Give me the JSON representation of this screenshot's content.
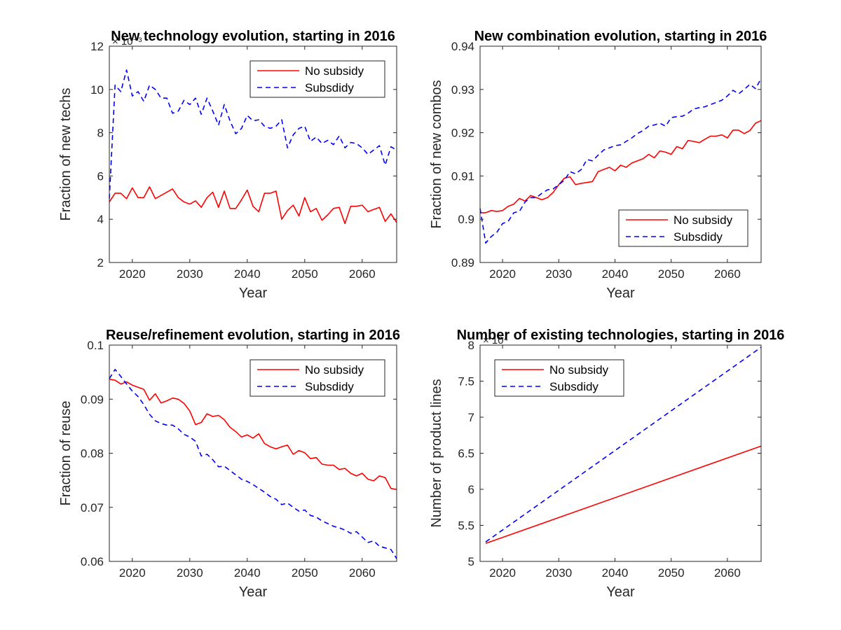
{
  "chart_data": [
    {
      "type": "line",
      "title": "New technology evolution, starting in 2016",
      "xlabel": "Year",
      "ylabel": "Fraction of new techs",
      "y_exponent": "× 10⁻³",
      "xlim": [
        2016,
        2066
      ],
      "ylim": [
        2,
        12
      ],
      "xticks": [
        2020,
        2030,
        2040,
        2050,
        2060
      ],
      "yticks": [
        2,
        4,
        6,
        8,
        10,
        12
      ],
      "legend_placement": "top-right",
      "x": [
        2016,
        2017,
        2018,
        2019,
        2020,
        2021,
        2022,
        2023,
        2024,
        2025,
        2026,
        2027,
        2028,
        2029,
        2030,
        2031,
        2032,
        2033,
        2034,
        2035,
        2036,
        2037,
        2038,
        2039,
        2040,
        2041,
        2042,
        2043,
        2044,
        2045,
        2046,
        2047,
        2048,
        2049,
        2050,
        2051,
        2052,
        2053,
        2054,
        2055,
        2056,
        2057,
        2058,
        2059,
        2060,
        2061,
        2062,
        2063,
        2064,
        2065,
        2066
      ],
      "series": [
        {
          "name": "No subsidy",
          "color": "#ff0000",
          "dash": "solid",
          "values": [
            4.8,
            5.2,
            5.2,
            4.95,
            5.45,
            5.0,
            5.0,
            5.5,
            4.95,
            5.1,
            5.25,
            5.4,
            5.0,
            4.8,
            4.7,
            4.85,
            4.55,
            5.0,
            5.25,
            4.55,
            5.3,
            4.5,
            4.5,
            4.9,
            5.35,
            4.6,
            4.35,
            5.2,
            5.2,
            5.3,
            4.0,
            4.4,
            4.65,
            4.15,
            5.0,
            4.35,
            4.5,
            3.95,
            4.2,
            4.5,
            4.55,
            3.8,
            4.6,
            4.6,
            4.65,
            4.35,
            4.45,
            4.55,
            3.9,
            4.25,
            3.85
          ]
        },
        {
          "name": "Subsdidy",
          "color": "#0000ff",
          "dash": "dashed",
          "values": [
            4.95,
            10.2,
            9.9,
            10.9,
            9.7,
            9.9,
            9.45,
            10.2,
            10.0,
            9.6,
            9.6,
            8.9,
            9.0,
            9.5,
            9.3,
            9.6,
            8.85,
            9.6,
            9.0,
            8.35,
            9.3,
            8.55,
            7.95,
            8.2,
            8.8,
            8.55,
            8.6,
            8.3,
            8.2,
            8.3,
            8.6,
            7.3,
            7.9,
            8.2,
            8.3,
            7.6,
            7.8,
            7.5,
            7.65,
            7.45,
            7.85,
            7.3,
            7.55,
            7.5,
            7.3,
            7.0,
            7.2,
            7.4,
            6.5,
            7.35,
            7.2
          ]
        }
      ]
    },
    {
      "type": "line",
      "title": "New combination evolution, starting in 2016",
      "xlabel": "Year",
      "ylabel": "Fraction of new combos",
      "xlim": [
        2016,
        2066
      ],
      "ylim": [
        0.89,
        0.94
      ],
      "xticks": [
        2020,
        2030,
        2040,
        2050,
        2060
      ],
      "yticks": [
        0.89,
        0.9,
        0.91,
        0.92,
        0.93,
        0.94
      ],
      "ytick_labels": [
        "0.89",
        "0.9",
        "0.91",
        "0.92",
        "0.93",
        "0.94"
      ],
      "legend_placement": "bottom-right",
      "x": [
        2016,
        2017,
        2018,
        2019,
        2020,
        2021,
        2022,
        2023,
        2024,
        2025,
        2026,
        2027,
        2028,
        2029,
        2030,
        2031,
        2032,
        2033,
        2034,
        2035,
        2036,
        2037,
        2038,
        2039,
        2040,
        2041,
        2042,
        2043,
        2044,
        2045,
        2046,
        2047,
        2048,
        2049,
        2050,
        2051,
        2052,
        2053,
        2054,
        2055,
        2056,
        2057,
        2058,
        2059,
        2060,
        2061,
        2062,
        2063,
        2064,
        2065,
        2066
      ],
      "series": [
        {
          "name": "No subsidy",
          "color": "#ff0000",
          "dash": "solid",
          "values": [
            0.9015,
            0.9015,
            0.902,
            0.9018,
            0.902,
            0.903,
            0.9035,
            0.9048,
            0.9042,
            0.9055,
            0.905,
            0.9045,
            0.905,
            0.9062,
            0.908,
            0.9095,
            0.9098,
            0.908,
            0.9083,
            0.9085,
            0.9087,
            0.911,
            0.9115,
            0.912,
            0.9112,
            0.9125,
            0.912,
            0.913,
            0.9135,
            0.914,
            0.915,
            0.9142,
            0.9158,
            0.9155,
            0.915,
            0.9168,
            0.9163,
            0.9182,
            0.918,
            0.9177,
            0.9185,
            0.9192,
            0.9192,
            0.9195,
            0.9188,
            0.9206,
            0.9206,
            0.9198,
            0.9205,
            0.9222,
            0.9228
          ]
        },
        {
          "name": "Subsdidy",
          "color": "#0000ff",
          "dash": "dashed",
          "values": [
            0.9025,
            0.8945,
            0.896,
            0.897,
            0.899,
            0.8995,
            0.9015,
            0.9018,
            0.904,
            0.905,
            0.905,
            0.906,
            0.9068,
            0.907,
            0.908,
            0.909,
            0.911,
            0.9105,
            0.9115,
            0.9138,
            0.9135,
            0.9148,
            0.916,
            0.9165,
            0.917,
            0.9172,
            0.918,
            0.9188,
            0.9198,
            0.9205,
            0.9215,
            0.9218,
            0.9222,
            0.9215,
            0.9235,
            0.9237,
            0.9238,
            0.9245,
            0.9255,
            0.9258,
            0.926,
            0.9265,
            0.927,
            0.9275,
            0.9285,
            0.9298,
            0.929,
            0.93,
            0.9312,
            0.9302,
            0.9325
          ]
        }
      ]
    },
    {
      "type": "line",
      "title": "Reuse/refinement evolution, starting in 2016",
      "xlabel": "Year",
      "ylabel": "Fraction of reuse",
      "xlim": [
        2016,
        2066
      ],
      "ylim": [
        0.06,
        0.1
      ],
      "xticks": [
        2020,
        2030,
        2040,
        2050,
        2060
      ],
      "yticks": [
        0.06,
        0.07,
        0.08,
        0.09,
        0.1
      ],
      "ytick_labels": [
        "0.06",
        "0.07",
        "0.08",
        "0.09",
        "0.1"
      ],
      "legend_placement": "top-right",
      "x": [
        2016,
        2017,
        2018,
        2019,
        2020,
        2021,
        2022,
        2023,
        2024,
        2025,
        2026,
        2027,
        2028,
        2029,
        2030,
        2031,
        2032,
        2033,
        2034,
        2035,
        2036,
        2037,
        2038,
        2039,
        2040,
        2041,
        2042,
        2043,
        2044,
        2045,
        2046,
        2047,
        2048,
        2049,
        2050,
        2051,
        2052,
        2053,
        2054,
        2055,
        2056,
        2057,
        2058,
        2059,
        2060,
        2061,
        2062,
        2063,
        2064,
        2065,
        2066
      ],
      "series": [
        {
          "name": "No subsidy",
          "color": "#ff0000",
          "dash": "solid",
          "values": [
            0.0937,
            0.0935,
            0.0928,
            0.0932,
            0.0926,
            0.0922,
            0.0918,
            0.0898,
            0.091,
            0.0893,
            0.0897,
            0.0902,
            0.09,
            0.0892,
            0.0878,
            0.0853,
            0.0857,
            0.0873,
            0.0868,
            0.087,
            0.0862,
            0.0848,
            0.084,
            0.083,
            0.0834,
            0.0828,
            0.0836,
            0.0818,
            0.0812,
            0.0808,
            0.0812,
            0.0815,
            0.0798,
            0.0805,
            0.0801,
            0.079,
            0.0792,
            0.078,
            0.0778,
            0.0778,
            0.077,
            0.0772,
            0.0763,
            0.0758,
            0.0763,
            0.0752,
            0.0749,
            0.0758,
            0.0755,
            0.0735,
            0.0733
          ]
        },
        {
          "name": "Subsdidy",
          "color": "#0000ff",
          "dash": "dashed",
          "values": [
            0.0938,
            0.0955,
            0.0942,
            0.0928,
            0.0915,
            0.0905,
            0.089,
            0.0872,
            0.086,
            0.0855,
            0.0852,
            0.0852,
            0.0845,
            0.0835,
            0.083,
            0.0822,
            0.0795,
            0.0798,
            0.0788,
            0.0775,
            0.0776,
            0.0768,
            0.076,
            0.0752,
            0.0748,
            0.0742,
            0.0735,
            0.0728,
            0.072,
            0.0715,
            0.0705,
            0.0708,
            0.07,
            0.0693,
            0.0695,
            0.0685,
            0.0682,
            0.0675,
            0.067,
            0.0665,
            0.0662,
            0.0658,
            0.0652,
            0.0655,
            0.0645,
            0.0635,
            0.0638,
            0.0628,
            0.0625,
            0.0622,
            0.0605
          ]
        }
      ]
    },
    {
      "type": "line",
      "title": "Number of existing technologies, starting in 2016",
      "xlabel": "Year",
      "ylabel": "Number of product lines",
      "y_exponent": "× 10⁴",
      "xlim": [
        2016,
        2066
      ],
      "ylim": [
        5,
        8
      ],
      "xticks": [
        2020,
        2030,
        2040,
        2050,
        2060
      ],
      "yticks": [
        5,
        5.5,
        6,
        6.5,
        7,
        7.5,
        8
      ],
      "legend_placement": "top-left",
      "x": [
        2017,
        2066
      ],
      "series": [
        {
          "name": "No subsidy",
          "color": "#ff0000",
          "dash": "solid",
          "values": [
            5.25,
            6.6
          ]
        },
        {
          "name": "Subsdidy",
          "color": "#0000ff",
          "dash": "dashed",
          "values": [
            5.27,
            7.97
          ]
        }
      ]
    }
  ]
}
